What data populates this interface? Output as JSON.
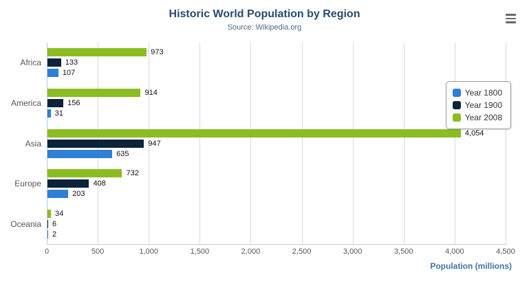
{
  "title": "Historic World Population by Region",
  "subtitle": "Source: Wikipedia.org",
  "menu_icon": "hamburger-icon",
  "chart_data": {
    "type": "bar",
    "orientation": "horizontal",
    "title": "Historic World Population by Region",
    "subtitle": "Source: Wikipedia.org",
    "categories": [
      "Africa",
      "America",
      "Asia",
      "Europe",
      "Oceania"
    ],
    "series": [
      {
        "name": "Year 1800",
        "color": "#2f7ed8",
        "values": [
          107,
          31,
          635,
          203,
          2
        ]
      },
      {
        "name": "Year 1900",
        "color": "#0d233a",
        "values": [
          133,
          156,
          947,
          408,
          6
        ]
      },
      {
        "name": "Year 2008",
        "color": "#8bbc21",
        "values": [
          973,
          914,
          4054,
          732,
          34
        ]
      }
    ],
    "data_labels": [
      [
        "107",
        "31",
        "635",
        "203",
        "2"
      ],
      [
        "133",
        "156",
        "947",
        "408",
        "6"
      ],
      [
        "973",
        "914",
        "4,054",
        "732",
        "34"
      ]
    ],
    "xlabel": "Population (millions)",
    "ylabel": "",
    "xlim": [
      0,
      4500
    ],
    "tick_interval": 500,
    "tick_labels": [
      "0",
      "500",
      "1,000",
      "1,500",
      "2,000",
      "2,500",
      "3,000",
      "3,500",
      "4,000",
      "4,500"
    ],
    "grid": true,
    "legend_position": "right",
    "legend_entries": [
      "Year 1800",
      "Year 1900",
      "Year 2008"
    ]
  }
}
